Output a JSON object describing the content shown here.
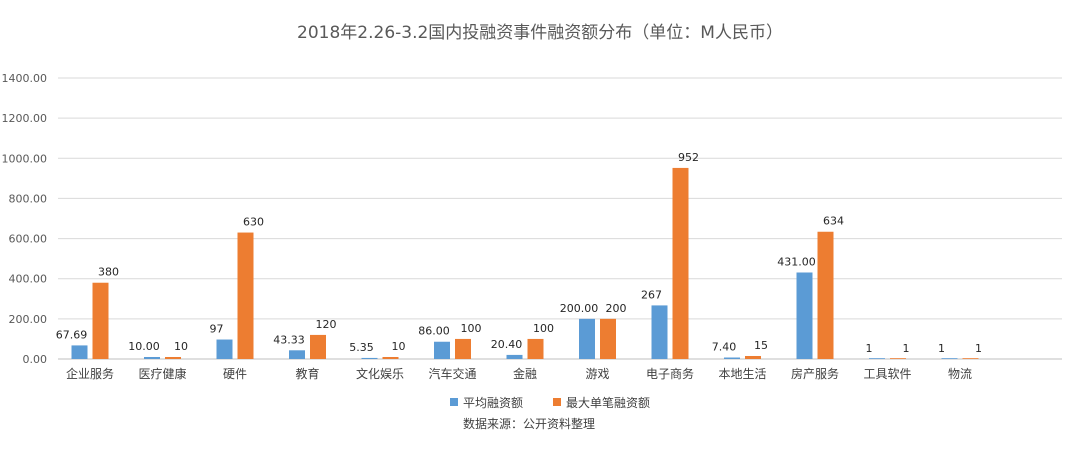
{
  "chart_data": {
    "type": "bar",
    "title": "2018年2.26-3.2国内投融资事件融资额分布（单位：M人民币）",
    "ylim": [
      0,
      1400
    ],
    "yticks": [
      "0.00",
      "200.00",
      "400.00",
      "600.00",
      "800.00",
      "1000.00",
      "1200.00",
      "1400.00"
    ],
    "grid": true,
    "legend_position": "bottom",
    "categories": [
      "企业服务",
      "医疗健康",
      "硬件",
      "教育",
      "文化娱乐",
      "汽车交通",
      "金融",
      "游戏",
      "电子商务",
      "本地生活",
      "房产服务",
      "工具软件",
      "物流"
    ],
    "series": [
      {
        "name": "平均融资额",
        "color": "#5b9bd5",
        "values": [
          67.69,
          10.0,
          97,
          43.33,
          5.35,
          86.0,
          20.4,
          200.0,
          267,
          7.4,
          431.0,
          1,
          1
        ],
        "labels": [
          "67.69",
          "10.00",
          "97",
          "43.33",
          "5.35",
          "86.00",
          "20.40",
          "200.00",
          "267",
          "7.40",
          "431.00",
          "1",
          "1"
        ]
      },
      {
        "name": "最大单笔融资额",
        "color": "#ed7d31",
        "values": [
          380,
          10,
          630,
          120,
          10,
          100,
          100,
          200,
          952,
          15,
          634,
          1,
          1
        ],
        "labels": [
          "380",
          "10",
          "630",
          "120",
          "10",
          "100",
          "100",
          "200",
          "952",
          "15",
          "634",
          "1",
          "1"
        ]
      }
    ],
    "source": "数据来源：公开资料整理"
  }
}
